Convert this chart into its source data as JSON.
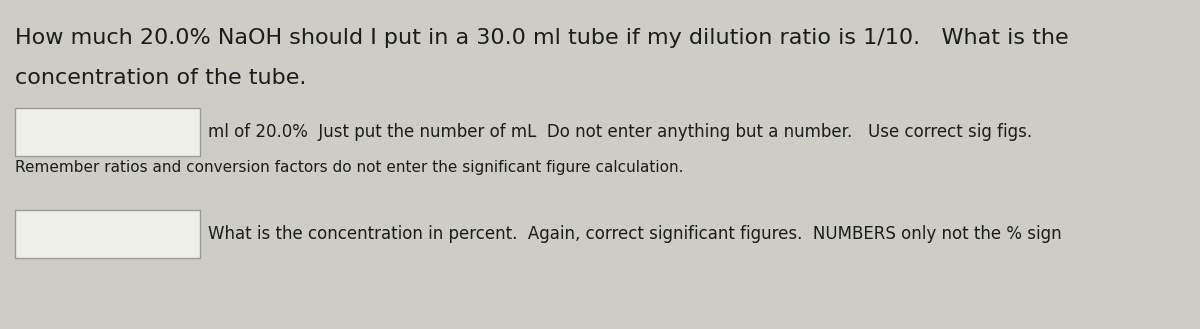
{
  "bg_color": "#cdccc5",
  "title_line1": "How much 20.0% NaOH should I put in a 30.0 ml tube if my dilution ratio is 1/10.   What is the",
  "title_line2": "concentration of the tube.",
  "box1_text": "ml of 20.0%  Just put the number of mL  Do not enter anything but a number.   Use correct sig figs.",
  "subtext1": "Remember ratios and conversion factors do not enter the significant figure calculation.",
  "box2_text": "What is the concentration in percent.  Again, correct significant figures.  NUMBERS only not the % sign",
  "text_color": "#1c1c1c",
  "box_fill": "#efefea",
  "box_edge": "#999999",
  "title_fontsize": 16.0,
  "body_fontsize": 12.0,
  "small_fontsize": 11.0,
  "fig_width": 12.0,
  "fig_height": 3.29,
  "dpi": 100
}
